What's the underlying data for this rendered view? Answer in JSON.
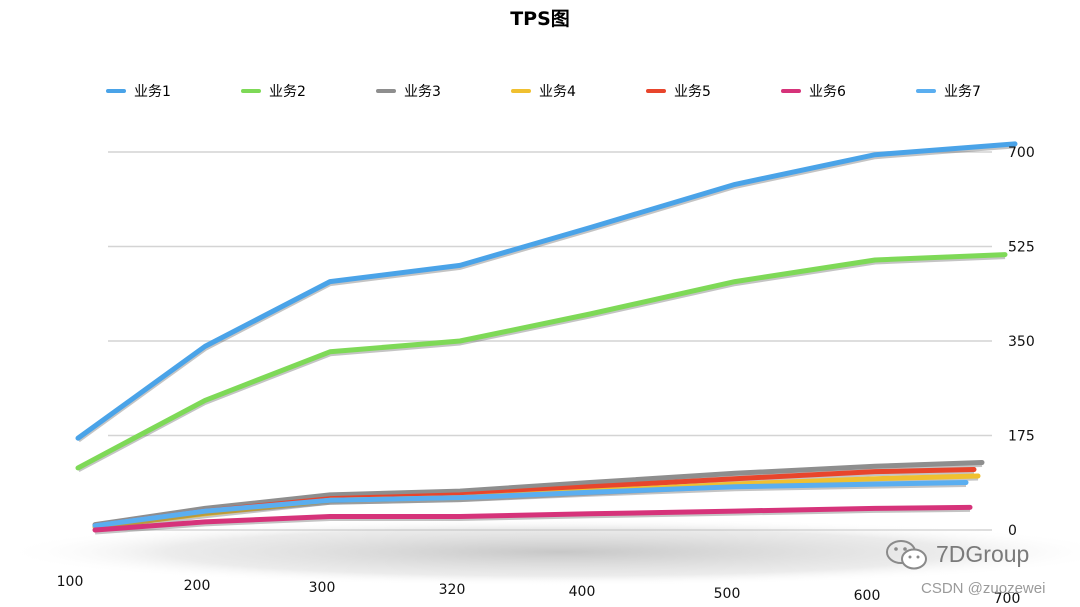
{
  "chart_data": {
    "type": "line",
    "title": "TPS图",
    "categories": [
      "100",
      "200",
      "300",
      "320",
      "400",
      "500",
      "600",
      "700"
    ],
    "y_ticks": [
      "0",
      "175",
      "350",
      "525",
      "700"
    ],
    "ylim": [
      0,
      700
    ],
    "grid": true,
    "legend_position": "top",
    "series": [
      {
        "name": "业务1",
        "color": "#4aa3e8",
        "values": [
          170,
          340,
          460,
          490,
          560,
          640,
          695,
          715
        ]
      },
      {
        "name": "业务2",
        "color": "#7ed957",
        "values": [
          115,
          240,
          330,
          350,
          400,
          460,
          500,
          510
        ]
      },
      {
        "name": "业务3",
        "color": "#8e8e8e",
        "values": [
          10,
          40,
          65,
          72,
          88,
          105,
          118,
          125
        ]
      },
      {
        "name": "业务4",
        "color": "#f0c030",
        "values": [
          5,
          30,
          55,
          60,
          72,
          85,
          95,
          100
        ]
      },
      {
        "name": "业务5",
        "color": "#e8452c",
        "values": [
          8,
          35,
          58,
          65,
          80,
          95,
          108,
          112
        ]
      },
      {
        "name": "业务6",
        "color": "#d6337a",
        "values": [
          0,
          15,
          25,
          25,
          30,
          35,
          40,
          42
        ]
      },
      {
        "name": "业务7",
        "color": "#5aaef0",
        "values": [
          8,
          35,
          55,
          60,
          70,
          80,
          85,
          88
        ]
      }
    ]
  },
  "watermark": {
    "brand": "7DGroup",
    "csdn": "CSDN @zuozewei"
  }
}
